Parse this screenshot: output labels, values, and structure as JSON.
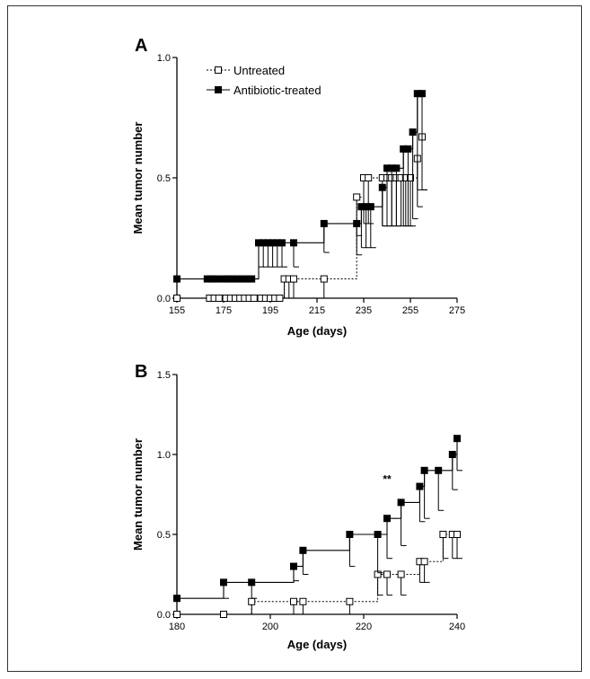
{
  "chart_data": [
    {
      "panel": "A",
      "type": "line",
      "xlabel": "Age (days)",
      "ylabel": "Mean tumor number",
      "xlim": [
        155,
        275
      ],
      "ylim": [
        0.0,
        1.0
      ],
      "xticks": [
        "155",
        "175",
        "195",
        "215",
        "235",
        "255",
        "275"
      ],
      "yticks": [
        "0.0",
        "0.5",
        "1.0"
      ],
      "legend": "top-left",
      "series": [
        {
          "name": "Untreated",
          "marker": "open-square",
          "line": "dotted",
          "x": [
            155,
            169,
            171,
            173,
            176,
            178,
            180,
            182,
            184,
            186,
            188,
            191,
            193,
            195,
            197,
            199,
            201,
            203,
            205,
            218,
            232,
            235,
            237,
            243,
            245,
            247,
            249,
            251,
            253,
            255,
            258,
            260
          ],
          "y": [
            0.0,
            0.0,
            0.0,
            0.0,
            0.0,
            0.0,
            0.0,
            0.0,
            0.0,
            0.0,
            0.0,
            0.0,
            0.0,
            0.0,
            0.0,
            0.0,
            0.08,
            0.08,
            0.08,
            0.08,
            0.42,
            0.5,
            0.5,
            0.5,
            0.5,
            0.5,
            0.5,
            0.5,
            0.5,
            0.5,
            0.58,
            0.67
          ],
          "err": [
            0,
            0,
            0,
            0,
            0,
            0,
            0,
            0,
            0,
            0,
            0,
            0,
            0,
            0,
            0,
            0,
            0.08,
            0.08,
            0.08,
            0.08,
            0.16,
            0.19,
            0.19,
            0.2,
            0.2,
            0.2,
            0.2,
            0.2,
            0.2,
            0.2,
            0.2,
            0.22
          ]
        },
        {
          "name": "Antibiotic-treated",
          "marker": "filled-square",
          "line": "solid",
          "x": [
            155,
            168,
            170,
            172,
            175,
            177,
            179,
            181,
            183,
            185,
            187,
            190,
            192,
            194,
            196,
            198,
            200,
            205,
            218,
            232,
            234,
            236,
            238,
            243,
            245,
            247,
            249,
            252,
            254,
            256,
            258,
            260
          ],
          "y": [
            0.08,
            0.08,
            0.08,
            0.08,
            0.08,
            0.08,
            0.08,
            0.08,
            0.08,
            0.08,
            0.08,
            0.23,
            0.23,
            0.23,
            0.23,
            0.23,
            0.23,
            0.23,
            0.31,
            0.31,
            0.38,
            0.38,
            0.38,
            0.46,
            0.54,
            0.54,
            0.54,
            0.62,
            0.62,
            0.69,
            0.85,
            0.85
          ],
          "err": [
            0,
            0,
            0,
            0,
            0,
            0,
            0,
            0,
            0,
            0,
            0,
            0.1,
            0.1,
            0.1,
            0.1,
            0.1,
            0.1,
            0.1,
            0.12,
            0.13,
            0.17,
            0.17,
            0.17,
            0.16,
            0.24,
            0.24,
            0.24,
            0.32,
            0.32,
            0.36,
            0.4,
            0.4
          ]
        }
      ]
    },
    {
      "panel": "B",
      "type": "line",
      "xlabel": "Age (days)",
      "ylabel": "Mean tumor number",
      "xlim": [
        180,
        240
      ],
      "ylim": [
        0.0,
        1.5
      ],
      "xticks": [
        "180",
        "200",
        "220",
        "240"
      ],
      "yticks": [
        "0.0",
        "0.5",
        "1.0",
        "1.5"
      ],
      "annotations": [
        {
          "text": "**",
          "x": 225,
          "y": 0.8
        }
      ],
      "series": [
        {
          "name": "Untreated",
          "marker": "open-square",
          "line": "dotted",
          "x": [
            180,
            190,
            196,
            205,
            207,
            217,
            223,
            225,
            228,
            232,
            233,
            237,
            239,
            240
          ],
          "y": [
            0.0,
            0.0,
            0.08,
            0.08,
            0.08,
            0.08,
            0.25,
            0.25,
            0.25,
            0.33,
            0.33,
            0.5,
            0.5,
            0.5
          ],
          "err": [
            0,
            0,
            0.08,
            0.08,
            0.08,
            0.08,
            0.13,
            0.13,
            0.13,
            0.13,
            0.13,
            0.15,
            0.15,
            0.15
          ]
        },
        {
          "name": "Antibiotic-treated",
          "marker": "filled-square",
          "line": "solid",
          "x": [
            180,
            190,
            196,
            205,
            207,
            217,
            223,
            225,
            228,
            232,
            233,
            236,
            239,
            240
          ],
          "y": [
            0.1,
            0.2,
            0.2,
            0.3,
            0.4,
            0.5,
            0.5,
            0.6,
            0.7,
            0.8,
            0.9,
            0.9,
            1.0,
            1.1
          ],
          "err": [
            0,
            0.1,
            0.1,
            0.09,
            0.15,
            0.2,
            0.24,
            0.25,
            0.27,
            0.22,
            0.3,
            0.25,
            0.22,
            0.2
          ]
        }
      ]
    }
  ]
}
